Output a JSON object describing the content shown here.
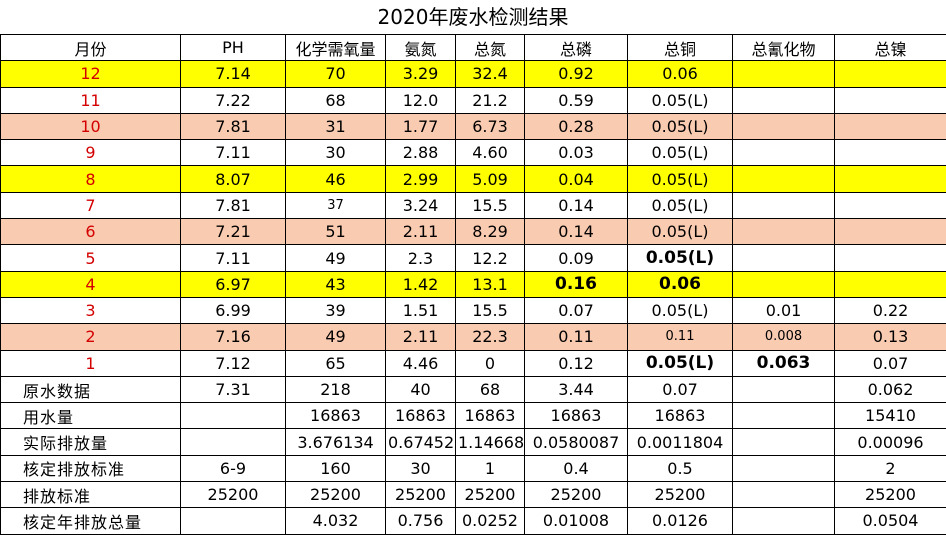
{
  "title": "2020年废水检测结果",
  "headers": [
    "月份",
    "PH",
    "化学需氧量",
    "氨氮",
    "总氮",
    "总磷",
    "总铜",
    "总氰化物",
    "总镍"
  ],
  "month_rows": [
    {
      "month": "12",
      "cells": [
        "7.14",
        "70",
        "3.29",
        "32.4",
        "0.92",
        "0.06",
        "",
        ""
      ],
      "fill": "yellow"
    },
    {
      "month": "11",
      "cells": [
        "7.22",
        "68",
        "12.0",
        "21.2",
        "0.59",
        "0.05(L)",
        "",
        ""
      ],
      "fill": "white"
    },
    {
      "month": "10",
      "cells": [
        "7.81",
        "31",
        "1.77",
        "6.73",
        "0.28",
        "0.05(L)",
        "",
        ""
      ],
      "fill": "peach"
    },
    {
      "month": "9",
      "cells": [
        "7.11",
        "30",
        "2.88",
        "4.60",
        "0.03",
        "0.05(L)",
        "",
        ""
      ],
      "fill": "white"
    },
    {
      "month": "8",
      "cells": [
        "8.07",
        "46",
        "2.99",
        "5.09",
        "0.04",
        "0.05(L)",
        "",
        ""
      ],
      "fill": "yellow"
    },
    {
      "month": "7",
      "cells": [
        "7.81",
        "37",
        "3.24",
        "15.5",
        "0.14",
        "0.05(L)",
        "",
        ""
      ],
      "fill": "white"
    },
    {
      "month": "6",
      "cells": [
        "7.21",
        "51",
        "2.11",
        "8.29",
        "0.14",
        "0.05(L)",
        "",
        ""
      ],
      "fill": "peach"
    },
    {
      "month": "5",
      "cells": [
        "7.11",
        "49",
        "2.3",
        "12.2",
        "0.09",
        "0.05(L)",
        "",
        ""
      ],
      "fill": "white"
    },
    {
      "month": "4",
      "cells": [
        "6.97",
        "43",
        "1.42",
        "13.1",
        "0.16",
        "0.06",
        "",
        ""
      ],
      "fill": "yellow"
    },
    {
      "month": "3",
      "cells": [
        "6.99",
        "39",
        "1.51",
        "15.5",
        "0.07",
        "0.05(L)",
        "0.01",
        "0.22"
      ],
      "fill": "white"
    },
    {
      "month": "2",
      "cells": [
        "7.16",
        "49",
        "2.11",
        "22.3",
        "0.11",
        "0.11",
        "0.008",
        "0.13"
      ],
      "fill": "peach"
    },
    {
      "month": "1",
      "cells": [
        "7.12",
        "65",
        "4.46",
        "0",
        "0.12",
        "0.05(L)",
        "0.063",
        "0.07"
      ],
      "fill": "white"
    }
  ],
  "summary_rows": [
    {
      "label": "原水数据",
      "cells": [
        "7.31",
        "218",
        "40",
        "68",
        "3.44",
        "0.07",
        "",
        "0.062"
      ]
    },
    {
      "label": "用水量",
      "cells": [
        "",
        "16863",
        "16863",
        "16863",
        "16863",
        "16863",
        "",
        "15410"
      ]
    },
    {
      "label": "实际排放量",
      "cells": [
        "",
        "3.676134",
        "0.67452",
        "1.14668",
        "0.0580087",
        "0.0011804",
        "",
        "0.00096"
      ]
    },
    {
      "label": "核定排放标准",
      "cells": [
        "6-9",
        "160",
        "30",
        "1",
        "0.4",
        "0.5",
        "",
        "2"
      ]
    },
    {
      "label": "排放标准",
      "cells": [
        "25200",
        "25200",
        "25200",
        "25200",
        "25200",
        "25200",
        "",
        "25200"
      ]
    },
    {
      "label": "核定年排放总量",
      "cells": [
        "",
        "4.032",
        "0.756",
        "0.0252",
        "0.01008",
        "0.0126",
        "",
        "0.0504"
      ]
    }
  ]
}
